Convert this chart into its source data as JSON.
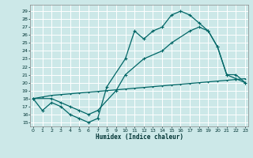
{
  "xlabel": "Humidex (Indice chaleur)",
  "bg_color": "#cce8e8",
  "grid_color": "#b8d8d8",
  "line_color": "#006666",
  "ylim": [
    14.5,
    29.8
  ],
  "xlim": [
    -0.3,
    23.3
  ],
  "ytick_min": 15,
  "ytick_max": 29,
  "xtick_min": 0,
  "xtick_max": 23,
  "curve1_x": [
    0,
    1,
    2,
    3,
    4,
    5,
    6,
    7,
    8,
    10,
    11,
    12,
    13,
    14,
    15,
    16,
    17,
    18,
    19,
    20,
    21,
    22,
    23
  ],
  "curve1_y": [
    18,
    16.5,
    17.5,
    17,
    16,
    15.5,
    15,
    15.5,
    19.5,
    23,
    26.5,
    25.5,
    26.5,
    27,
    28.5,
    29,
    28.5,
    27.5,
    26.5,
    24.5,
    21,
    20.5,
    20
  ],
  "curve2_x": [
    0,
    2,
    3,
    4,
    5,
    6,
    7,
    9,
    10,
    12,
    14,
    15,
    17,
    18,
    19,
    20,
    21,
    22,
    23
  ],
  "curve2_y": [
    18,
    18,
    17.5,
    17,
    16.5,
    16,
    16.5,
    19,
    21,
    23,
    24,
    25,
    26.5,
    27,
    26.5,
    24.5,
    21,
    21,
    20
  ],
  "curve3_x": [
    0,
    1,
    2,
    3,
    4,
    5,
    6,
    7,
    8,
    9,
    10,
    11,
    12,
    13,
    14,
    15,
    16,
    17,
    18,
    19,
    20,
    21,
    22,
    23
  ],
  "curve3_y": [
    18,
    18.2,
    18.4,
    18.5,
    18.6,
    18.7,
    18.8,
    18.9,
    19.0,
    19.1,
    19.2,
    19.3,
    19.4,
    19.5,
    19.6,
    19.7,
    19.8,
    19.9,
    20.0,
    20.1,
    20.2,
    20.3,
    20.4,
    20.5
  ]
}
